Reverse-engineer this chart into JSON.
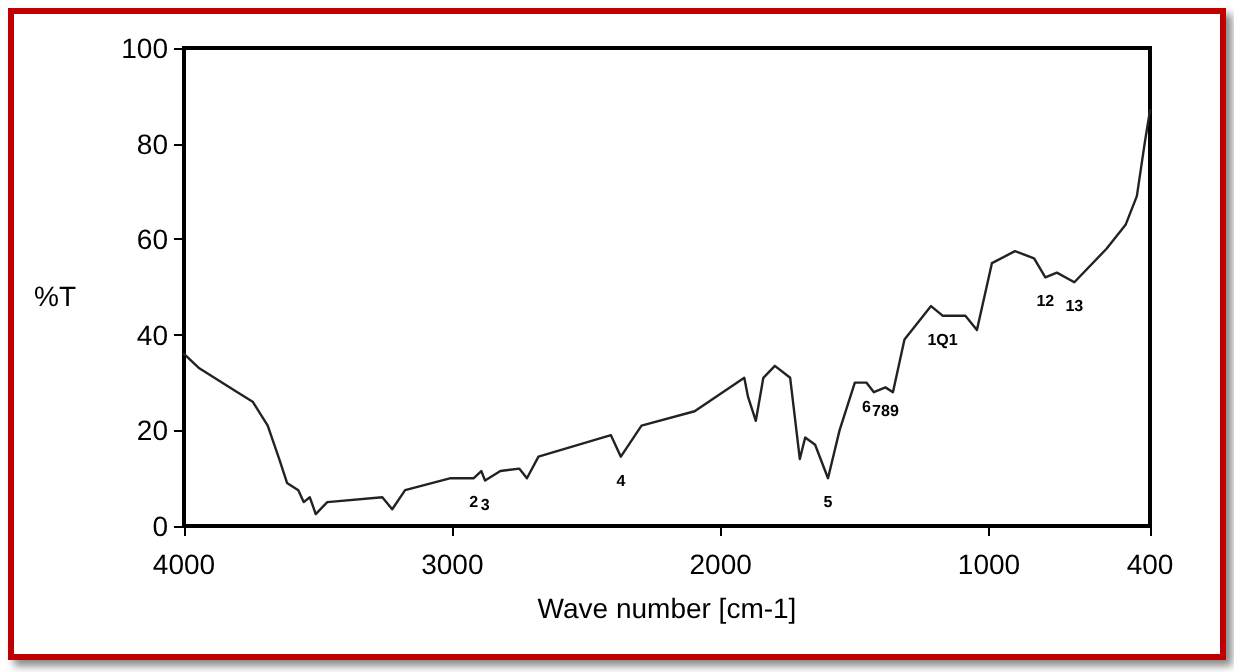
{
  "chart_data": {
    "type": "line",
    "xlabel": "Wave number [cm-1]",
    "ylabel": "%T",
    "x": [
      4000,
      3943,
      3801,
      3744,
      3688,
      3645,
      3616,
      3574,
      3554,
      3531,
      3509,
      3466,
      3261,
      3224,
      3176,
      3006,
      2920,
      2892,
      2878,
      2821,
      2750,
      2722,
      2679,
      2409,
      2372,
      2295,
      2097,
      1912,
      1898,
      1869,
      1841,
      1798,
      1741,
      1705,
      1685,
      1648,
      1600,
      1557,
      1500,
      1457,
      1429,
      1386,
      1358,
      1315,
      1216,
      1173,
      1088,
      1045,
      989,
      903,
      832,
      790,
      747,
      682,
      562,
      491,
      449,
      420,
      400
    ],
    "series": [
      {
        "color": "#222222",
        "values": [
          36,
          33,
          28,
          26,
          21,
          14,
          9,
          7.5,
          5,
          6,
          2.5,
          5,
          6,
          3.5,
          7.5,
          10,
          10,
          11.5,
          9.5,
          11.5,
          12,
          10,
          14.5,
          19,
          14.5,
          21,
          24,
          31,
          27,
          22,
          31,
          33.5,
          31,
          14,
          18.5,
          17,
          10,
          20,
          30,
          30,
          28,
          29,
          28,
          39,
          46,
          44,
          44,
          41,
          55,
          57.5,
          56,
          52,
          53,
          51,
          58,
          63,
          69,
          80,
          87
        ]
      }
    ],
    "xlim": [
      4000,
      400
    ],
    "xticks": [
      4000,
      3000,
      2000,
      1000,
      400
    ],
    "ylim": [
      0,
      100
    ],
    "yticks": [
      0,
      20,
      40,
      60,
      80,
      100
    ],
    "grid": false,
    "marker": "none",
    "line_style": "solid",
    "annotations": [
      {
        "text": "2",
        "x": 2920,
        "y": 10
      },
      {
        "text": "3",
        "x": 2878,
        "y": 9.5
      },
      {
        "text": "4",
        "x": 2372,
        "y": 14.5
      },
      {
        "text": "5",
        "x": 1600,
        "y": 10
      },
      {
        "text": "6",
        "x": 1457,
        "y": 30
      },
      {
        "text": "789",
        "x": 1386,
        "y": 29
      },
      {
        "text": "1Q1",
        "x": 1173,
        "y": 44
      },
      {
        "text": "12",
        "x": 790,
        "y": 52
      },
      {
        "text": "13",
        "x": 682,
        "y": 51
      }
    ]
  }
}
